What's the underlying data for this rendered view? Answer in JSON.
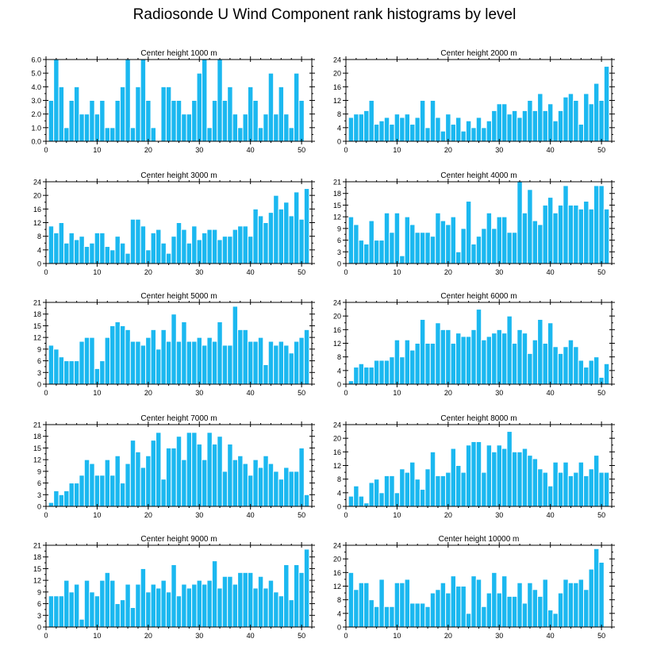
{
  "title": "Radiosonde U Wind Component rank histograms by level",
  "colors": {
    "bar": "#1bb8f0",
    "bar_stroke": "#ffffff",
    "axis": "#000000"
  },
  "chart_data": [
    {
      "type": "bar",
      "title": "Center height 1000 m",
      "xlim": [
        0,
        52
      ],
      "ylim": [
        0,
        6
      ],
      "yticks": [
        0,
        1,
        2,
        3,
        4,
        5,
        6
      ],
      "ytick_labels": [
        "0.0",
        "1.0",
        "2.0",
        "3.0",
        "4.0",
        "5.0",
        "6.0"
      ],
      "xticks": [
        0,
        10,
        20,
        30,
        40,
        50
      ],
      "values": [
        3,
        6,
        4,
        1,
        3,
        4,
        2,
        2,
        3,
        2,
        3,
        1,
        1,
        3,
        4,
        6,
        1,
        4,
        6,
        3,
        1,
        0,
        4,
        4,
        3,
        3,
        2,
        2,
        3,
        5,
        6,
        1,
        3,
        6,
        3,
        4,
        2,
        1,
        2,
        4,
        3,
        1,
        2,
        5,
        2,
        4,
        2,
        1,
        5,
        3
      ]
    },
    {
      "type": "bar",
      "title": "Center height 2000 m",
      "xlim": [
        0,
        52
      ],
      "ylim": [
        0,
        24
      ],
      "yticks": [
        0,
        4,
        8,
        12,
        16,
        20,
        24
      ],
      "ytick_labels": [
        "0",
        "4",
        "8",
        "12",
        "16",
        "20",
        "24"
      ],
      "xticks": [
        0,
        10,
        20,
        30,
        40,
        50
      ],
      "values": [
        7,
        8,
        8,
        9,
        12,
        5,
        6,
        7,
        5,
        8,
        7,
        8,
        5,
        7,
        12,
        4,
        12,
        7,
        3,
        8,
        5,
        7,
        3,
        6,
        4,
        7,
        4,
        6,
        9,
        11,
        11,
        8,
        9,
        7,
        9,
        12,
        9,
        14,
        9,
        11,
        6,
        9,
        13,
        14,
        12,
        5,
        14,
        11,
        17,
        12,
        22
      ]
    },
    {
      "type": "bar",
      "title": "Center height 3000 m",
      "xlim": [
        0,
        52
      ],
      "ylim": [
        0,
        24
      ],
      "yticks": [
        0,
        4,
        8,
        12,
        16,
        20,
        24
      ],
      "ytick_labels": [
        "0",
        "4",
        "8",
        "12",
        "16",
        "20",
        "24"
      ],
      "xticks": [
        0,
        10,
        20,
        30,
        40,
        50
      ],
      "values": [
        11,
        9,
        12,
        6,
        9,
        7,
        8,
        5,
        6,
        9,
        9,
        5,
        4,
        8,
        6,
        3,
        13,
        13,
        11,
        4,
        9,
        10,
        6,
        3,
        8,
        12,
        10,
        6,
        11,
        7,
        9,
        10,
        10,
        7,
        8,
        8,
        10,
        11,
        11,
        8,
        16,
        14,
        12,
        15,
        20,
        16,
        18,
        14,
        21,
        13,
        22
      ]
    },
    {
      "type": "bar",
      "title": "Center height 4000 m",
      "xlim": [
        0,
        52
      ],
      "ylim": [
        0,
        21
      ],
      "yticks": [
        0,
        3,
        6,
        9,
        12,
        15,
        18,
        21
      ],
      "ytick_labels": [
        "0",
        "3",
        "6",
        "9",
        "12",
        "15",
        "18",
        "21"
      ],
      "xticks": [
        0,
        10,
        20,
        30,
        40,
        50
      ],
      "values": [
        12,
        10,
        6,
        5,
        11,
        6,
        6,
        13,
        8,
        13,
        2,
        12,
        10,
        8,
        8,
        8,
        7,
        13,
        11,
        10,
        12,
        3,
        9,
        16,
        5,
        7,
        9,
        13,
        9,
        12,
        12,
        8,
        8,
        21,
        13,
        19,
        11,
        10,
        15,
        17,
        13,
        15,
        20,
        15,
        15,
        14,
        16,
        14,
        20,
        20,
        14
      ]
    },
    {
      "type": "bar",
      "title": "Center height 5000 m",
      "xlim": [
        0,
        52
      ],
      "ylim": [
        0,
        21
      ],
      "yticks": [
        0,
        3,
        6,
        9,
        12,
        15,
        18,
        21
      ],
      "ytick_labels": [
        "0",
        "3",
        "6",
        "9",
        "12",
        "15",
        "18",
        "21"
      ],
      "xticks": [
        0,
        10,
        20,
        30,
        40,
        50
      ],
      "values": [
        10,
        9,
        7,
        6,
        6,
        6,
        11,
        12,
        12,
        4,
        6,
        12,
        15,
        16,
        15,
        14,
        11,
        11,
        10,
        12,
        14,
        9,
        14,
        11,
        18,
        11,
        16,
        11,
        11,
        12,
        10,
        12,
        11,
        16,
        10,
        10,
        20,
        14,
        14,
        11,
        11,
        12,
        5,
        11,
        10,
        11,
        10,
        8,
        11,
        12,
        14
      ]
    },
    {
      "type": "bar",
      "title": "Center height 6000 m",
      "xlim": [
        0,
        52
      ],
      "ylim": [
        0,
        24
      ],
      "yticks": [
        0,
        4,
        8,
        12,
        16,
        20,
        24
      ],
      "ytick_labels": [
        "0",
        "4",
        "8",
        "12",
        "16",
        "20",
        "24"
      ],
      "xticks": [
        0,
        10,
        20,
        30,
        40,
        50
      ],
      "values": [
        1,
        5,
        6,
        5,
        5,
        7,
        7,
        7,
        8,
        13,
        8,
        13,
        10,
        12,
        19,
        12,
        12,
        18,
        16,
        16,
        12,
        15,
        14,
        14,
        16,
        22,
        13,
        14,
        15,
        16,
        15,
        20,
        12,
        16,
        15,
        9,
        13,
        19,
        12,
        18,
        11,
        9,
        11,
        13,
        11,
        7,
        5,
        7,
        8,
        2,
        6
      ]
    },
    {
      "type": "bar",
      "title": "Center height 7000 m",
      "xlim": [
        0,
        52
      ],
      "ylim": [
        0,
        21
      ],
      "yticks": [
        0,
        3,
        6,
        9,
        12,
        15,
        18,
        21
      ],
      "ytick_labels": [
        "0",
        "3",
        "6",
        "9",
        "12",
        "15",
        "18",
        "21"
      ],
      "xticks": [
        0,
        10,
        20,
        30,
        40,
        50
      ],
      "values": [
        1,
        4,
        3,
        4,
        6,
        6,
        8,
        12,
        11,
        8,
        8,
        12,
        8,
        13,
        6,
        11,
        17,
        14,
        10,
        13,
        17,
        19,
        7,
        15,
        15,
        18,
        12,
        19,
        19,
        16,
        12,
        19,
        16,
        18,
        9,
        16,
        12,
        13,
        11,
        8,
        12,
        10,
        13,
        11,
        9,
        7,
        10,
        9,
        9,
        15,
        3
      ]
    },
    {
      "type": "bar",
      "title": "Center height 8000 m",
      "xlim": [
        0,
        52
      ],
      "ylim": [
        0,
        24
      ],
      "yticks": [
        0,
        4,
        8,
        12,
        16,
        20,
        24
      ],
      "ytick_labels": [
        "0",
        "4",
        "8",
        "12",
        "16",
        "20",
        "24"
      ],
      "xticks": [
        0,
        10,
        20,
        30,
        40,
        50
      ],
      "values": [
        3,
        6,
        3,
        1,
        7,
        8,
        4,
        9,
        9,
        4,
        11,
        10,
        13,
        8,
        5,
        11,
        16,
        9,
        9,
        10,
        17,
        12,
        10,
        18,
        19,
        19,
        10,
        18,
        16,
        18,
        17,
        22,
        16,
        16,
        17,
        15,
        14,
        11,
        10,
        6,
        13,
        10,
        13,
        9,
        10,
        13,
        9,
        11,
        15,
        10,
        10
      ]
    },
    {
      "type": "bar",
      "title": "Center height 9000 m",
      "xlim": [
        0,
        52
      ],
      "ylim": [
        0,
        21
      ],
      "yticks": [
        0,
        3,
        6,
        9,
        12,
        15,
        18,
        21
      ],
      "ytick_labels": [
        "0",
        "3",
        "6",
        "9",
        "12",
        "15",
        "18",
        "21"
      ],
      "xticks": [
        0,
        10,
        20,
        30,
        40,
        50
      ],
      "values": [
        8,
        8,
        8,
        12,
        9,
        11,
        2,
        12,
        9,
        8,
        12,
        14,
        12,
        6,
        7,
        11,
        5,
        11,
        15,
        9,
        11,
        10,
        12,
        9,
        16,
        8,
        11,
        10,
        11,
        12,
        11,
        12,
        17,
        10,
        13,
        13,
        11,
        14,
        14,
        14,
        10,
        13,
        10,
        12,
        9,
        8,
        16,
        7,
        16,
        14,
        20
      ]
    },
    {
      "type": "bar",
      "title": "Center height 10000 m",
      "xlim": [
        0,
        52
      ],
      "ylim": [
        0,
        24
      ],
      "yticks": [
        0,
        4,
        8,
        12,
        16,
        20,
        24
      ],
      "ytick_labels": [
        "0",
        "4",
        "8",
        "12",
        "16",
        "20",
        "24"
      ],
      "xticks": [
        0,
        10,
        20,
        30,
        40,
        50
      ],
      "values": [
        16,
        11,
        13,
        13,
        8,
        6,
        14,
        6,
        6,
        13,
        13,
        14,
        7,
        7,
        7,
        6,
        10,
        11,
        13,
        10,
        15,
        12,
        12,
        4,
        15,
        14,
        6,
        10,
        16,
        10,
        15,
        9,
        9,
        13,
        7,
        13,
        11,
        9,
        14,
        5,
        4,
        10,
        14,
        13,
        13,
        14,
        11,
        17,
        23,
        19
      ]
    }
  ]
}
